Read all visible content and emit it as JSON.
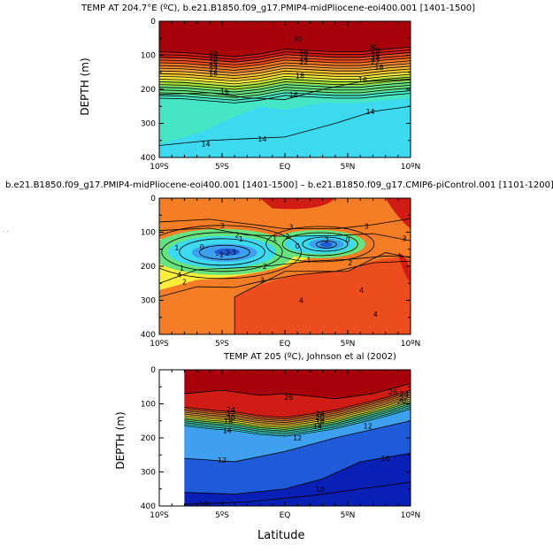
{
  "page": {
    "stray_marks": ".\n."
  },
  "colors": {
    "palette": [
      "#0a1fb4",
      "#1f5bd8",
      "#3fa0ef",
      "#3dd9ef",
      "#46e6c4",
      "#66e27e",
      "#a6e23a",
      "#ffef3c",
      "#ffc42a",
      "#f7a13a",
      "#f47d26",
      "#ec4d1e",
      "#cf1c14",
      "#a8000a"
    ]
  },
  "chart_data": [
    {
      "id": "top",
      "type": "heatmap",
      "title": "TEMP AT 204.7°E (ºC), b.e21.B1850.f09_g17.PMIP4-midPliocene-eoi400.001 [1401-1500]",
      "xlabel": "",
      "ylabel": "DEPTH (m)",
      "xlim": [
        -10,
        10
      ],
      "ylim": [
        400,
        0
      ],
      "x_ticks": [
        -10,
        -5,
        0,
        5,
        10
      ],
      "x_tick_labels": [
        "10ºS",
        "5ºS",
        "EQ",
        "5ºN",
        "10ºN"
      ],
      "y_ticks": [
        0,
        100,
        200,
        300,
        400
      ],
      "y_tick_labels": [
        "0",
        "100",
        "200",
        "300",
        "400"
      ],
      "contour_labels": [
        {
          "text": "30",
          "x": -5.7,
          "y": 95
        },
        {
          "text": "28",
          "x": -5.7,
          "y": 108
        },
        {
          "text": "26",
          "x": -5.7,
          "y": 120
        },
        {
          "text": "24",
          "x": -5.7,
          "y": 131
        },
        {
          "text": "22",
          "x": -5.7,
          "y": 141
        },
        {
          "text": "18",
          "x": -5.7,
          "y": 152
        },
        {
          "text": "16",
          "x": -4.8,
          "y": 205
        },
        {
          "text": "30",
          "x": 1.0,
          "y": 52
        },
        {
          "text": "28",
          "x": 1.5,
          "y": 95
        },
        {
          "text": "24",
          "x": 1.5,
          "y": 108
        },
        {
          "text": "22",
          "x": 1.5,
          "y": 120
        },
        {
          "text": "18",
          "x": 1.2,
          "y": 160
        },
        {
          "text": "16",
          "x": 0.7,
          "y": 215
        },
        {
          "text": "30",
          "x": 7.0,
          "y": 75
        },
        {
          "text": "28",
          "x": 7.2,
          "y": 85
        },
        {
          "text": "26",
          "x": 7.2,
          "y": 97
        },
        {
          "text": "24",
          "x": 7.2,
          "y": 108
        },
        {
          "text": "22",
          "x": 7.2,
          "y": 118
        },
        {
          "text": "18",
          "x": 7.5,
          "y": 135
        },
        {
          "text": "16",
          "x": 6.2,
          "y": 172
        },
        {
          "text": "14",
          "x": -6.3,
          "y": 360
        },
        {
          "text": "14",
          "x": -1.8,
          "y": 345
        },
        {
          "text": "14",
          "x": 6.8,
          "y": 265
        }
      ]
    },
    {
      "id": "middle",
      "type": "heatmap",
      "title": "b.e21.B1850.f09_g17.PMIP4-midPliocene-eoi400.001 [1401-1500] – b.e21.B1850.f09_g17.CMIP6-piControl.001 [1101-1200]",
      "xlabel": "",
      "ylabel": "",
      "xlim": [
        -10,
        10
      ],
      "ylim": [
        400,
        0
      ],
      "x_ticks": [
        -10,
        -5,
        0,
        5,
        10
      ],
      "x_tick_labels": [
        "10ºS",
        "5ºS",
        "EQ",
        "5ºN",
        "10ºN"
      ],
      "y_ticks": [
        0,
        100,
        200,
        300,
        400
      ],
      "y_tick_labels": [
        "0",
        "100",
        "200",
        "300",
        "400"
      ],
      "contour_labels": [
        {
          "text": "3",
          "x": -5.0,
          "y": 80
        },
        {
          "text": "2",
          "x": -3.8,
          "y": 108
        },
        {
          "text": "1",
          "x": -3.5,
          "y": 120
        },
        {
          "text": "1",
          "x": -8.6,
          "y": 145
        },
        {
          "text": "0",
          "x": -6.6,
          "y": 143
        },
        {
          "text": "–1",
          "x": -5.2,
          "y": 165
        },
        {
          "text": "–2",
          "x": -4.7,
          "y": 160
        },
        {
          "text": "–3",
          "x": -4.2,
          "y": 158
        },
        {
          "text": "3",
          "x": 0.5,
          "y": 85
        },
        {
          "text": "2",
          "x": 0.2,
          "y": 112
        },
        {
          "text": "1",
          "x": -0.8,
          "y": 118
        },
        {
          "text": "0",
          "x": 1.0,
          "y": 140
        },
        {
          "text": "–2",
          "x": 3.2,
          "y": 124
        },
        {
          "text": "0",
          "x": 5.0,
          "y": 122
        },
        {
          "text": "3",
          "x": 6.5,
          "y": 82
        },
        {
          "text": "3",
          "x": 9.5,
          "y": 118
        },
        {
          "text": "1",
          "x": 1.9,
          "y": 180
        },
        {
          "text": "2",
          "x": -1.6,
          "y": 200
        },
        {
          "text": "2",
          "x": 5.2,
          "y": 190
        },
        {
          "text": "1",
          "x": -8.2,
          "y": 205
        },
        {
          "text": "2",
          "x": -8.0,
          "y": 245
        },
        {
          "text": "3",
          "x": -1.8,
          "y": 240
        },
        {
          "text": "4",
          "x": -8.4,
          "y": 225
        },
        {
          "text": "4",
          "x": 6.1,
          "y": 270
        },
        {
          "text": "4",
          "x": 1.3,
          "y": 300
        },
        {
          "text": "4",
          "x": 7.2,
          "y": 340
        }
      ]
    },
    {
      "id": "bottom",
      "type": "heatmap",
      "title": "TEMP AT 205 (ºC), Johnson et al (2002)",
      "xlabel": "Latitude",
      "ylabel": "DEPTH (m)",
      "xlim": [
        -10,
        10
      ],
      "ylim": [
        400,
        0
      ],
      "data_xlim": [
        -8,
        10
      ],
      "x_ticks": [
        -10,
        -5,
        0,
        5,
        10
      ],
      "x_tick_labels": [
        "10ºS",
        "5ºS",
        "EQ",
        "5ºN",
        "10ºN"
      ],
      "y_ticks": [
        0,
        100,
        200,
        300,
        400
      ],
      "y_tick_labels": [
        "0",
        "100",
        "200",
        "300",
        "400"
      ],
      "contour_labels": [
        {
          "text": "26",
          "x": 0.3,
          "y": 80
        },
        {
          "text": "26",
          "x": 8.6,
          "y": 65
        },
        {
          "text": "24",
          "x": 9.5,
          "y": 70
        },
        {
          "text": "22",
          "x": 9.5,
          "y": 82
        },
        {
          "text": "20",
          "x": 9.3,
          "y": 92
        },
        {
          "text": "24",
          "x": -4.3,
          "y": 117
        },
        {
          "text": "22",
          "x": -4.3,
          "y": 128
        },
        {
          "text": "20",
          "x": -4.3,
          "y": 140
        },
        {
          "text": "18",
          "x": -4.5,
          "y": 150
        },
        {
          "text": "14",
          "x": -4.6,
          "y": 178
        },
        {
          "text": "24",
          "x": 2.8,
          "y": 128
        },
        {
          "text": "20",
          "x": 2.8,
          "y": 140
        },
        {
          "text": "18",
          "x": 2.8,
          "y": 150
        },
        {
          "text": "14",
          "x": 2.6,
          "y": 165
        },
        {
          "text": "12",
          "x": 1.0,
          "y": 200
        },
        {
          "text": "12",
          "x": 6.6,
          "y": 165
        },
        {
          "text": "12",
          "x": -5.0,
          "y": 265
        },
        {
          "text": "10",
          "x": 8.0,
          "y": 260
        },
        {
          "text": "10",
          "x": 2.8,
          "y": 350
        },
        {
          "text": "10",
          "x": -6.5,
          "y": 395
        }
      ]
    }
  ]
}
